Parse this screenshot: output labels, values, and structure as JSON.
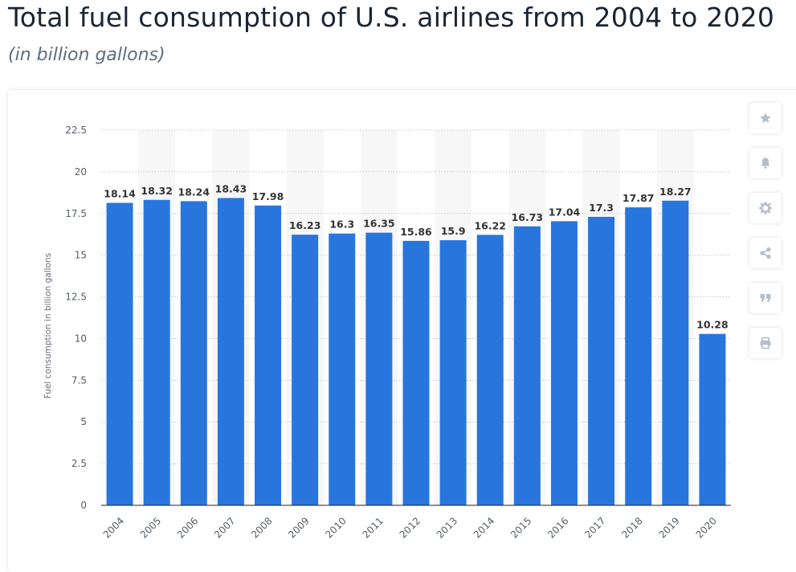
{
  "header": {
    "title": "Total fuel consumption of U.S. airlines from 2004 to 2020",
    "subtitle": "(in billion gallons)"
  },
  "toolbar": {
    "buttons": [
      {
        "icon": "star-icon",
        "name": "favorite-button"
      },
      {
        "icon": "bell-icon",
        "name": "notification-button"
      },
      {
        "icon": "gear-icon",
        "name": "settings-button"
      },
      {
        "icon": "share-icon",
        "name": "share-button"
      },
      {
        "icon": "quote-icon",
        "name": "cite-button"
      },
      {
        "icon": "print-icon",
        "name": "print-button"
      }
    ],
    "icon_color": "#b5bec9"
  },
  "chart_data": {
    "type": "bar",
    "title": "",
    "xlabel": "",
    "ylabel": "Fuel consumption in billion gallons",
    "categories": [
      "2004",
      "2005",
      "2006",
      "2007",
      "2008",
      "2009",
      "2010",
      "2011",
      "2012",
      "2013",
      "2014",
      "2015",
      "2016",
      "2017",
      "2018",
      "2019",
      "2020"
    ],
    "values": [
      18.14,
      18.32,
      18.24,
      18.43,
      17.98,
      16.23,
      16.3,
      16.35,
      15.86,
      15.9,
      16.22,
      16.73,
      17.04,
      17.3,
      17.87,
      18.27,
      10.28
    ],
    "value_labels": [
      "18.14",
      "18.32",
      "18.24",
      "18.43",
      "17.98",
      "16.23",
      "16.3",
      "16.35",
      "15.86",
      "15.9",
      "16.22",
      "16.73",
      "17.04",
      "17.3",
      "17.87",
      "18.27",
      "10.28"
    ],
    "ylim": [
      0,
      22.5
    ],
    "yticks": [
      "0",
      "2.5",
      "5",
      "7.5",
      "10",
      "12.5",
      "15",
      "17.5",
      "20",
      "22.5"
    ],
    "grid": true,
    "bar_color": "#2876dd",
    "alt_band_color": "#f7f7f7"
  }
}
